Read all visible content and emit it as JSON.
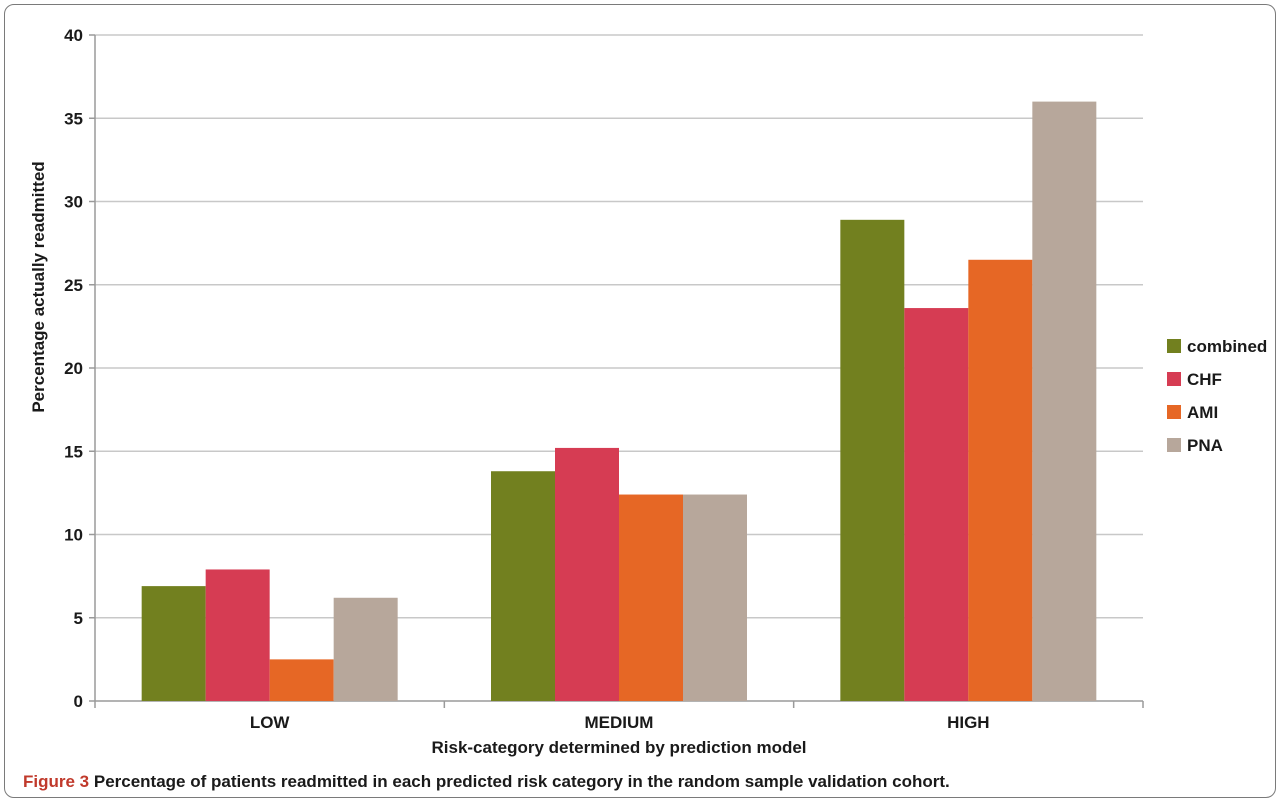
{
  "caption": {
    "label": "Figure 3",
    "text": "Percentage of patients readmitted in each predicted risk category in the random sample validation cohort."
  },
  "chart_data": {
    "type": "bar",
    "categories": [
      "LOW",
      "MEDIUM",
      "HIGH"
    ],
    "series": [
      {
        "name": "combined",
        "color": "#72801f",
        "values": [
          6.9,
          13.8,
          28.9
        ]
      },
      {
        "name": "CHF",
        "color": "#d63c53",
        "values": [
          7.9,
          15.2,
          23.6
        ]
      },
      {
        "name": "AMI",
        "color": "#e66725",
        "values": [
          2.5,
          12.4,
          26.5
        ]
      },
      {
        "name": "PNA",
        "color": "#b7a79b",
        "values": [
          6.2,
          12.4,
          36.0
        ]
      }
    ],
    "xlabel": "Risk-category determined by prediction model",
    "ylabel": "Percentage actually readmitted",
    "ylim": [
      0,
      40
    ],
    "yticks": [
      0,
      5,
      10,
      15,
      20,
      25,
      30,
      35,
      40
    ],
    "grid": true,
    "legend": "right"
  }
}
